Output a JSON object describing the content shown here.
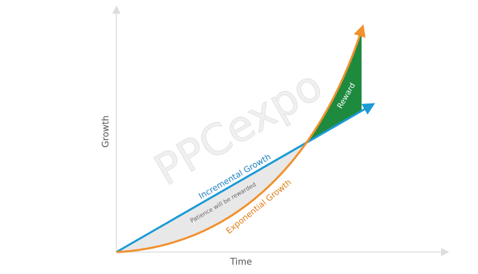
{
  "watermark": "PPCexpo",
  "axes": {
    "y_label": "Growth",
    "x_label": "Time"
  },
  "labels": {
    "incremental": "Incremental Growth",
    "exponential": "Exponential Growth",
    "patience": "Patience will be rewarded",
    "reward": "Reward"
  }
}
